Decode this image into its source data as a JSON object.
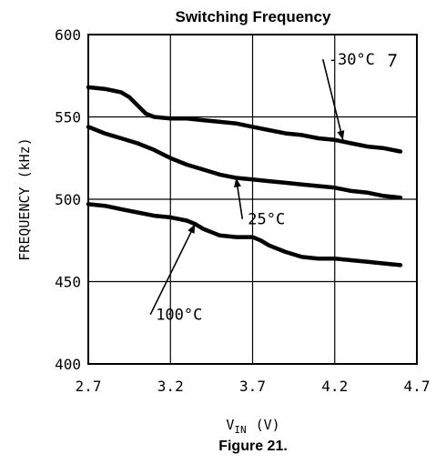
{
  "chart_data": {
    "type": "line",
    "title": "Switching Frequency",
    "caption": "Figure 21.",
    "xlabel_main": "V",
    "xlabel_sub": "IN",
    "xlabel_unit": "(V)",
    "ylabel": "FREQUENCY (kHz)",
    "xlim": [
      2.7,
      4.7
    ],
    "ylim": [
      400,
      600
    ],
    "xticks": [
      "2.7",
      "3.2",
      "3.7",
      "4.2",
      "4.7"
    ],
    "xtick_values": [
      2.7,
      3.2,
      3.7,
      4.2,
      4.7
    ],
    "yticks": [
      "400",
      "450",
      "500",
      "550",
      "600"
    ],
    "ytick_values": [
      400,
      450,
      500,
      550,
      600
    ],
    "grid": true,
    "series": [
      {
        "name": "-30°C",
        "x": [
          2.7,
          2.8,
          2.9,
          2.95,
          3.0,
          3.05,
          3.1,
          3.2,
          3.3,
          3.4,
          3.5,
          3.6,
          3.7,
          3.8,
          3.9,
          4.0,
          4.1,
          4.2,
          4.3,
          4.4,
          4.5,
          4.6
        ],
        "y": [
          568,
          567,
          565,
          562,
          557,
          552,
          550,
          549,
          549,
          548,
          547,
          546,
          544,
          542,
          540,
          539,
          537,
          536,
          534,
          532,
          531,
          529
        ]
      },
      {
        "name": "25°C",
        "x": [
          2.7,
          2.8,
          2.9,
          3.0,
          3.1,
          3.2,
          3.3,
          3.4,
          3.5,
          3.6,
          3.7,
          3.8,
          3.9,
          4.0,
          4.1,
          4.2,
          4.3,
          4.4,
          4.5,
          4.6
        ],
        "y": [
          544,
          540,
          537,
          534,
          530,
          525,
          521,
          518,
          515,
          513,
          512,
          511,
          510,
          509,
          508,
          507,
          505,
          504,
          502,
          501
        ]
      },
      {
        "name": "100°C",
        "x": [
          2.7,
          2.8,
          2.9,
          3.0,
          3.1,
          3.2,
          3.3,
          3.35,
          3.4,
          3.45,
          3.5,
          3.6,
          3.65,
          3.7,
          3.75,
          3.8,
          3.9,
          4.0,
          4.1,
          4.2,
          4.3,
          4.4,
          4.5,
          4.6
        ],
        "y": [
          497,
          496,
          494,
          492,
          490,
          489,
          487,
          485,
          482,
          480,
          478,
          477,
          477,
          477,
          475,
          472,
          468,
          465,
          464,
          464,
          463,
          462,
          461,
          460
        ]
      }
    ],
    "annotations": [
      {
        "text": "-30°C",
        "point_x": 4.25,
        "point_y": 536,
        "label_x": 4.15,
        "label_y": 585
      },
      {
        "text": "25°C",
        "point_x": 3.6,
        "point_y": 513,
        "label_x": 3.66,
        "label_y": 488
      },
      {
        "text": "100°C",
        "point_x": 3.35,
        "point_y": 485,
        "label_x": 3.1,
        "label_y": 430
      }
    ]
  }
}
